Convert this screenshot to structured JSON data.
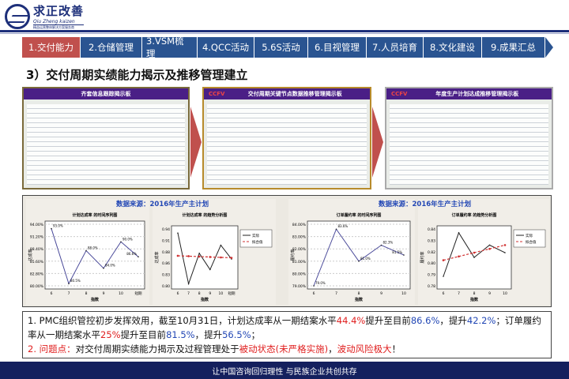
{
  "logo": {
    "name_cn": "求正改善",
    "name_en": "Qiu Zheng kaizen",
    "tagline": "精益运营整体解决方案服务商"
  },
  "nav": {
    "tabs": [
      {
        "label": "1.交付能力",
        "active": true
      },
      {
        "label": "2.仓储管理"
      },
      {
        "label": "3.VSM梳理"
      },
      {
        "label": "4.QCC活动"
      },
      {
        "label": "5.6S活动"
      },
      {
        "label": "6.目视管理"
      },
      {
        "label": "7.人员培育"
      },
      {
        "label": "8.文化建设"
      },
      {
        "label": "9.成果汇总"
      }
    ]
  },
  "section_title": "3）交付周期实绩能力揭示及推移管理建立",
  "photos": [
    {
      "brand": "",
      "board_title": "齐套信息跟踪揭示板"
    },
    {
      "brand": "CCFV",
      "board_title": "交付周期关键节点数据推移管理揭示板"
    },
    {
      "brand": "CCFV",
      "board_title": "年度生产计划达成推移管理揭示板"
    }
  ],
  "data_source": "数据来源：2016年生产主计划",
  "colors": {
    "accent_red": "#c0504d",
    "nav_blue": "#2a5491",
    "navy": "#14205e",
    "highlight_red": "#e02020",
    "highlight_blue": "#2247b5"
  },
  "chart_data": [
    {
      "type": "line",
      "title": "计划达成率 的时间序列图",
      "xlabel": "指数",
      "ylabel": "达成率",
      "categories": [
        "6",
        "7",
        "8",
        "9",
        "10",
        "短期"
      ],
      "values": [
        93.0,
        80.5,
        88.0,
        84.0,
        90.0,
        86.6
      ],
      "ylim": [
        80,
        94
      ],
      "grid": true
    },
    {
      "type": "line",
      "title": "计划达成率 的趋势分析图",
      "xlabel": "指数",
      "ylabel": "达成率",
      "categories": [
        "6",
        "7",
        "8",
        "9",
        "10",
        "短期"
      ],
      "series": [
        {
          "name": "实际",
          "values": [
            0.93,
            0.805,
            0.88,
            0.84,
            0.9,
            0.866
          ]
        },
        {
          "name": "拟合值",
          "values": [
            0.874,
            0.873,
            0.872,
            0.871,
            0.87,
            0.869
          ]
        }
      ],
      "ylim": [
        0.8,
        0.94
      ],
      "grid": false
    },
    {
      "type": "line",
      "title": "订单履约率 的时间序列图",
      "xlabel": "指数",
      "ylabel": "履约率",
      "categories": [
        "6",
        "7",
        "8",
        "9",
        "10"
      ],
      "values": [
        79.0,
        83.6,
        81.0,
        82.3,
        81.5
      ],
      "ylim": [
        79,
        84
      ],
      "grid": true
    },
    {
      "type": "line",
      "title": "订单履约率 的趋势分析图",
      "xlabel": "指数",
      "ylabel": "履约率",
      "categories": [
        "6",
        "7",
        "8",
        "9",
        "10"
      ],
      "series": [
        {
          "name": "实际",
          "values": [
            0.79,
            0.836,
            0.81,
            0.823,
            0.815
          ]
        },
        {
          "name": "拟合值",
          "values": [
            0.807,
            0.811,
            0.815,
            0.819,
            0.823
          ]
        }
      ],
      "ylim": [
        0.78,
        0.84
      ],
      "grid": false
    }
  ],
  "notes": {
    "n1_num": "1.",
    "n1_a": "PMC组织管控初步发挥效用，截至10月31日，计划达成率从一期结案水平",
    "n1_v1": "44.4%",
    "n1_b": "提升至目前",
    "n1_v2": "86.6%",
    "n1_c": "，提升",
    "n1_v3": "42.2%",
    "n1_d": "；订单履约率从一期结案水平",
    "n1_v4": "25%",
    "n1_e": "提升至目前",
    "n1_v5": "81.5%",
    "n1_f": "，提升",
    "n1_v6": "56.5%",
    "n1_g": "；",
    "n2_num": "2.",
    "n2_label": "问题点：",
    "n2_a": "对交付周期实绩能力揭示及过程管理处于",
    "n2_v1": "被动状态",
    "n2_v2": "(未严格实施)",
    "n2_b": "，",
    "n2_v3": "波动风险极大",
    "n2_c": "！"
  },
  "footer": "让中国咨询回归理性 与民族企业共创共存"
}
